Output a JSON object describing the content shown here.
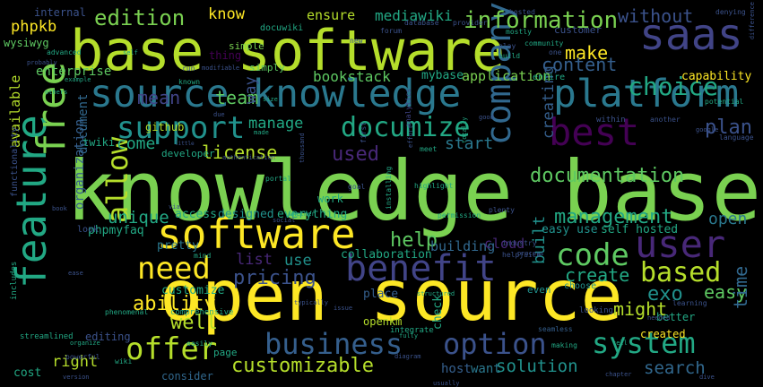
{
  "background": "#000000",
  "palette": {
    "green": "#7ad151",
    "lime": "#b5de2b",
    "yellow": "#fde725",
    "teal": "#22a884",
    "blue": "#2a788e",
    "slate": "#414487",
    "purple": "#440154",
    "indigo": "#3b528b",
    "mint": "#5ec962",
    "sea": "#21918c",
    "steel": "#31688e",
    "ocean": "#355f8d",
    "grape": "#482878"
  },
  "words": [
    {
      "text": "knowledge base",
      "weight": 100,
      "color": "green"
    },
    {
      "text": "open source",
      "weight": 80,
      "color": "yellow"
    },
    {
      "text": "base software",
      "weight": 62,
      "color": "lime"
    },
    {
      "text": "source knowledge",
      "weight": 45,
      "color": "blue"
    },
    {
      "text": "platform",
      "weight": 42,
      "color": "blue"
    },
    {
      "text": "feature",
      "weight": 44,
      "color": "teal"
    },
    {
      "text": "free",
      "weight": 40,
      "color": "green"
    },
    {
      "text": "software",
      "weight": 44,
      "color": "yellow"
    },
    {
      "text": "benefit",
      "weight": 40,
      "color": "slate"
    },
    {
      "text": "saas",
      "weight": 38,
      "color": "slate"
    },
    {
      "text": "best",
      "weight": 36,
      "color": "purple"
    },
    {
      "text": "user",
      "weight": 36,
      "color": "grape"
    },
    {
      "text": "company",
      "weight": 32,
      "color": "steel"
    },
    {
      "text": "support",
      "weight": 30,
      "color": "sea"
    },
    {
      "text": "allow",
      "weight": 30,
      "color": "lime"
    },
    {
      "text": "need",
      "weight": 30,
      "color": "yellow"
    },
    {
      "text": "offer",
      "weight": 30,
      "color": "lime"
    },
    {
      "text": "business",
      "weight": 30,
      "color": "ocean"
    },
    {
      "text": "option",
      "weight": 30,
      "color": "indigo"
    },
    {
      "text": "system",
      "weight": 30,
      "color": "teal"
    },
    {
      "text": "code",
      "weight": 28,
      "color": "mint"
    },
    {
      "text": "based",
      "weight": 26,
      "color": "lime"
    },
    {
      "text": "documize",
      "weight": 24,
      "color": "teal"
    },
    {
      "text": "choice",
      "weight": 22,
      "color": "teal"
    },
    {
      "text": "information",
      "weight": 20,
      "color": "green"
    },
    {
      "text": "edition",
      "weight": 20,
      "color": "green"
    },
    {
      "text": "management",
      "weight": 18,
      "color": "teal"
    },
    {
      "text": "documentation",
      "weight": 18,
      "color": "mint"
    },
    {
      "text": "used",
      "weight": 18,
      "color": "grape"
    },
    {
      "text": "help",
      "weight": 18,
      "color": "mint"
    },
    {
      "text": "pricing",
      "weight": 18,
      "color": "indigo"
    },
    {
      "text": "ability",
      "weight": 18,
      "color": "yellow"
    },
    {
      "text": "well",
      "weight": 18,
      "color": "lime"
    },
    {
      "text": "customizable",
      "weight": 18,
      "color": "lime"
    },
    {
      "text": "solution",
      "weight": 16,
      "color": "sea"
    },
    {
      "text": "search",
      "weight": 16,
      "color": "steel"
    },
    {
      "text": "make",
      "weight": 16,
      "color": "yellow"
    },
    {
      "text": "content",
      "weight": 16,
      "color": "ocean"
    },
    {
      "text": "without",
      "weight": 16,
      "color": "indigo"
    },
    {
      "text": "license",
      "weight": 16,
      "color": "lime"
    },
    {
      "text": "create",
      "weight": 16,
      "color": "teal"
    },
    {
      "text": "easy",
      "weight": 16,
      "color": "mint"
    },
    {
      "text": "exo",
      "weight": 16,
      "color": "sea"
    },
    {
      "text": "mean",
      "weight": 16,
      "color": "slate"
    },
    {
      "text": "time",
      "weight": 16,
      "color": "steel"
    },
    {
      "text": "plan",
      "weight": 16,
      "color": "indigo"
    },
    {
      "text": "unique",
      "weight": 16,
      "color": "teal"
    },
    {
      "text": "team",
      "weight": 16,
      "color": "mint"
    },
    {
      "text": "might",
      "weight": 16,
      "color": "lime"
    },
    {
      "text": "open",
      "weight": 14,
      "color": "blue"
    },
    {
      "text": "built",
      "weight": 14,
      "color": "sea"
    },
    {
      "text": "come",
      "weight": 14,
      "color": "teal"
    },
    {
      "text": "start",
      "weight": 14,
      "color": "blue"
    },
    {
      "text": "creating",
      "weight": 14,
      "color": "ocean"
    },
    {
      "text": "way",
      "weight": 14,
      "color": "indigo"
    },
    {
      "text": "manage",
      "weight": 14,
      "color": "teal"
    },
    {
      "text": "list",
      "weight": 14,
      "color": "grape"
    },
    {
      "text": "use",
      "weight": 14,
      "color": "sea"
    },
    {
      "text": "bookstack",
      "weight": 13,
      "color": "mint"
    },
    {
      "text": "mediawiki",
      "weight": 13,
      "color": "teal"
    },
    {
      "text": "ensure",
      "weight": 13,
      "color": "lime"
    },
    {
      "text": "know",
      "weight": 14,
      "color": "yellow"
    },
    {
      "text": "phpkb",
      "weight": 13,
      "color": "yellow"
    },
    {
      "text": "enterprise",
      "weight": 12,
      "color": "mint"
    },
    {
      "text": "application",
      "weight": 12,
      "color": "green"
    },
    {
      "text": "mybase",
      "weight": 12,
      "color": "teal"
    },
    {
      "text": "capability",
      "weight": 11,
      "color": "yellow"
    },
    {
      "text": "available",
      "weight": 12,
      "color": "lime"
    },
    {
      "text": "document",
      "weight": 12,
      "color": "steel"
    },
    {
      "text": "organization",
      "weight": 12,
      "color": "ocean"
    },
    {
      "text": "customize",
      "weight": 10,
      "color": "teal"
    },
    {
      "text": "right",
      "weight": 13,
      "color": "lime"
    },
    {
      "text": "access",
      "weight": 11,
      "color": "teal"
    },
    {
      "text": "designed",
      "weight": 11,
      "color": "sea"
    },
    {
      "text": "everything",
      "weight": 11,
      "color": "teal"
    },
    {
      "text": "building",
      "weight": 12,
      "color": "steel"
    },
    {
      "text": "cloud",
      "weight": 12,
      "color": "grape"
    },
    {
      "text": "collaboration",
      "weight": 11,
      "color": "teal"
    },
    {
      "text": "easy use",
      "weight": 11,
      "color": "sea"
    },
    {
      "text": "self hosted",
      "weight": 11,
      "color": "teal"
    },
    {
      "text": "pretty",
      "weight": 11,
      "color": "blue"
    },
    {
      "text": "phpmyfaq",
      "weight": 11,
      "color": "teal"
    },
    {
      "text": "twiki",
      "weight": 11,
      "color": "teal"
    },
    {
      "text": "github",
      "weight": 10,
      "color": "lime"
    },
    {
      "text": "work",
      "weight": 10,
      "color": "teal"
    },
    {
      "text": "developer",
      "weight": 9,
      "color": "teal"
    },
    {
      "text": "consider",
      "weight": 10,
      "color": "steel"
    },
    {
      "text": "host",
      "weight": 11,
      "color": "ocean"
    },
    {
      "text": "want",
      "weight": 11,
      "color": "blue"
    },
    {
      "text": "check",
      "weight": 11,
      "color": "teal"
    },
    {
      "text": "openkm",
      "weight": 10,
      "color": "lime"
    },
    {
      "text": "place",
      "weight": 11,
      "color": "ocean"
    },
    {
      "text": "better",
      "weight": 10,
      "color": "teal"
    },
    {
      "text": "created",
      "weight": 10,
      "color": "yellow"
    },
    {
      "text": "editing",
      "weight": 10,
      "color": "indigo"
    },
    {
      "text": "page",
      "weight": 9,
      "color": "teal"
    },
    {
      "text": "cost",
      "weight": 11,
      "color": "teal"
    },
    {
      "text": "internal",
      "weight": 9,
      "color": "indigo"
    },
    {
      "text": "wysiwyg",
      "weight": 10,
      "color": "mint"
    },
    {
      "text": "simple",
      "weight": 9,
      "color": "green"
    },
    {
      "text": "docuwiki",
      "weight": 9,
      "color": "teal"
    },
    {
      "text": "customer",
      "weight": 9,
      "color": "indigo"
    },
    {
      "text": "simply",
      "weight": 9,
      "color": "mint"
    },
    {
      "text": "thing",
      "weight": 9,
      "color": "purple"
    },
    {
      "text": "entire",
      "weight": 9,
      "color": "teal"
    },
    {
      "text": "functionality",
      "weight": 9,
      "color": "indigo"
    },
    {
      "text": "comprehensive",
      "weight": 8,
      "color": "teal"
    },
    {
      "text": "streamlined",
      "weight": 8,
      "color": "teal"
    },
    {
      "text": "includes",
      "weight": 8,
      "color": "teal"
    },
    {
      "text": "industry",
      "weight": 7,
      "color": "indigo"
    },
    {
      "text": "helpjuice",
      "weight": 7,
      "color": "indigo"
    },
    {
      "text": "analytics",
      "weight": 7,
      "color": "slate"
    },
    {
      "text": "look",
      "weight": 8,
      "color": "indigo"
    },
    {
      "text": "even",
      "weight": 9,
      "color": "sea"
    },
    {
      "text": "choose",
      "weight": 8,
      "color": "sea"
    },
    {
      "text": "looking",
      "weight": 8,
      "color": "indigo"
    },
    {
      "text": "integrate",
      "weight": 8,
      "color": "teal"
    },
    {
      "text": "seamless",
      "weight": 7,
      "color": "ocean"
    },
    {
      "text": "making",
      "weight": 7,
      "color": "teal"
    },
    {
      "text": "learning",
      "weight": 7,
      "color": "indigo"
    },
    {
      "text": "phenomenal",
      "weight": 7,
      "color": "teal"
    },
    {
      "text": "permission",
      "weight": 7,
      "color": "teal"
    },
    {
      "text": "plenty",
      "weight": 7,
      "color": "indigo"
    },
    {
      "text": "installing",
      "weight": 7,
      "color": "teal"
    },
    {
      "text": "highlight",
      "weight": 7,
      "color": "teal"
    },
    {
      "text": "forum",
      "weight": 7,
      "color": "indigo"
    },
    {
      "text": "provider",
      "weight": 7,
      "color": "indigo"
    },
    {
      "text": "database",
      "weight": 7,
      "color": "indigo"
    },
    {
      "text": "community",
      "weight": 7,
      "color": "teal"
    },
    {
      "text": "play",
      "weight": 7,
      "color": "indigo"
    },
    {
      "text": "build",
      "weight": 7,
      "color": "teal"
    },
    {
      "text": "hosted",
      "weight": 7,
      "color": "indigo"
    },
    {
      "text": "mostly",
      "weight": 7,
      "color": "teal"
    },
    {
      "text": "denying",
      "weight": 7,
      "color": "indigo"
    },
    {
      "text": "difference",
      "weight": 6,
      "color": "indigo"
    },
    {
      "text": "potential",
      "weight": 7,
      "color": "teal"
    },
    {
      "text": "known",
      "weight": 7,
      "color": "teal"
    },
    {
      "text": "modifiable",
      "weight": 6,
      "color": "indigo"
    },
    {
      "text": "advanced",
      "weight": 7,
      "color": "teal"
    },
    {
      "text": "probably",
      "weight": 6,
      "color": "indigo"
    },
    {
      "text": "example",
      "weight": 6,
      "color": "teal"
    },
    {
      "text": "others",
      "weight": 6,
      "color": "teal"
    },
    {
      "text": "portal",
      "weight": 7,
      "color": "teal"
    },
    {
      "text": "size",
      "weight": 6,
      "color": "teal"
    },
    {
      "text": "google",
      "weight": 6,
      "color": "indigo"
    },
    {
      "text": "language",
      "weight": 7,
      "color": "indigo"
    },
    {
      "text": "within",
      "weight": 8,
      "color": "indigo"
    },
    {
      "text": "another",
      "weight": 7,
      "color": "indigo"
    },
    {
      "text": "totally",
      "weight": 6,
      "color": "teal"
    },
    {
      "text": "good",
      "weight": 6,
      "color": "indigo"
    },
    {
      "text": "goal",
      "weight": 7,
      "color": "indigo"
    },
    {
      "text": "effort",
      "weight": 6,
      "color": "indigo"
    },
    {
      "text": "meet",
      "weight": 7,
      "color": "teal"
    },
    {
      "text": "authentication",
      "weight": 6,
      "color": "indigo"
    },
    {
      "text": "whether",
      "weight": 6,
      "color": "teal"
    },
    {
      "text": "social",
      "weight": 6,
      "color": "indigo"
    },
    {
      "text": "via",
      "weight": 6,
      "color": "indigo"
    },
    {
      "text": "first",
      "weight": 7,
      "color": "indigo"
    },
    {
      "text": "thousand",
      "weight": 6,
      "color": "indigo"
    },
    {
      "text": "due",
      "weight": 6,
      "color": "indigo"
    },
    {
      "text": "made",
      "weight": 6,
      "color": "teal"
    },
    {
      "text": "book",
      "weight": 6,
      "color": "indigo"
    },
    {
      "text": "mind",
      "weight": 7,
      "color": "teal"
    },
    {
      "text": "easily",
      "weight": 7,
      "color": "teal"
    },
    {
      "text": "typically",
      "weight": 6,
      "color": "indigo"
    },
    {
      "text": "organize",
      "weight": 6,
      "color": "teal"
    },
    {
      "text": "powerful",
      "weight": 7,
      "color": "indigo"
    },
    {
      "text": "issue",
      "weight": 6,
      "color": "indigo"
    },
    {
      "text": "tell",
      "weight": 6,
      "color": "teal"
    },
    {
      "text": "needed",
      "weight": 6,
      "color": "indigo"
    },
    {
      "text": "wiki",
      "weight": 7,
      "color": "teal"
    },
    {
      "text": "structured",
      "weight": 6,
      "color": "teal"
    },
    {
      "text": "diagram",
      "weight": 6,
      "color": "indigo"
    },
    {
      "text": "usually",
      "weight": 6,
      "color": "indigo"
    },
    {
      "text": "version",
      "weight": 6,
      "color": "indigo"
    },
    {
      "text": "chapter",
      "weight": 6,
      "color": "indigo"
    },
    {
      "text": "dive",
      "weight": 6,
      "color": "indigo"
    },
    {
      "text": "fully",
      "weight": 6,
      "color": "teal"
    },
    {
      "text": "process",
      "weight": 6,
      "color": "indigo"
    },
    {
      "text": "ease",
      "weight": 6,
      "color": "indigo"
    },
    {
      "text": "self",
      "weight": 6,
      "color": "teal"
    },
    {
      "text": "new",
      "weight": 7,
      "color": "indigo"
    },
    {
      "text": "one",
      "weight": 7,
      "color": "indigo"
    },
    {
      "text": "run",
      "weight": 7,
      "color": "indigo"
    },
    {
      "text": "little",
      "weight": 6,
      "color": "indigo"
    }
  ]
}
